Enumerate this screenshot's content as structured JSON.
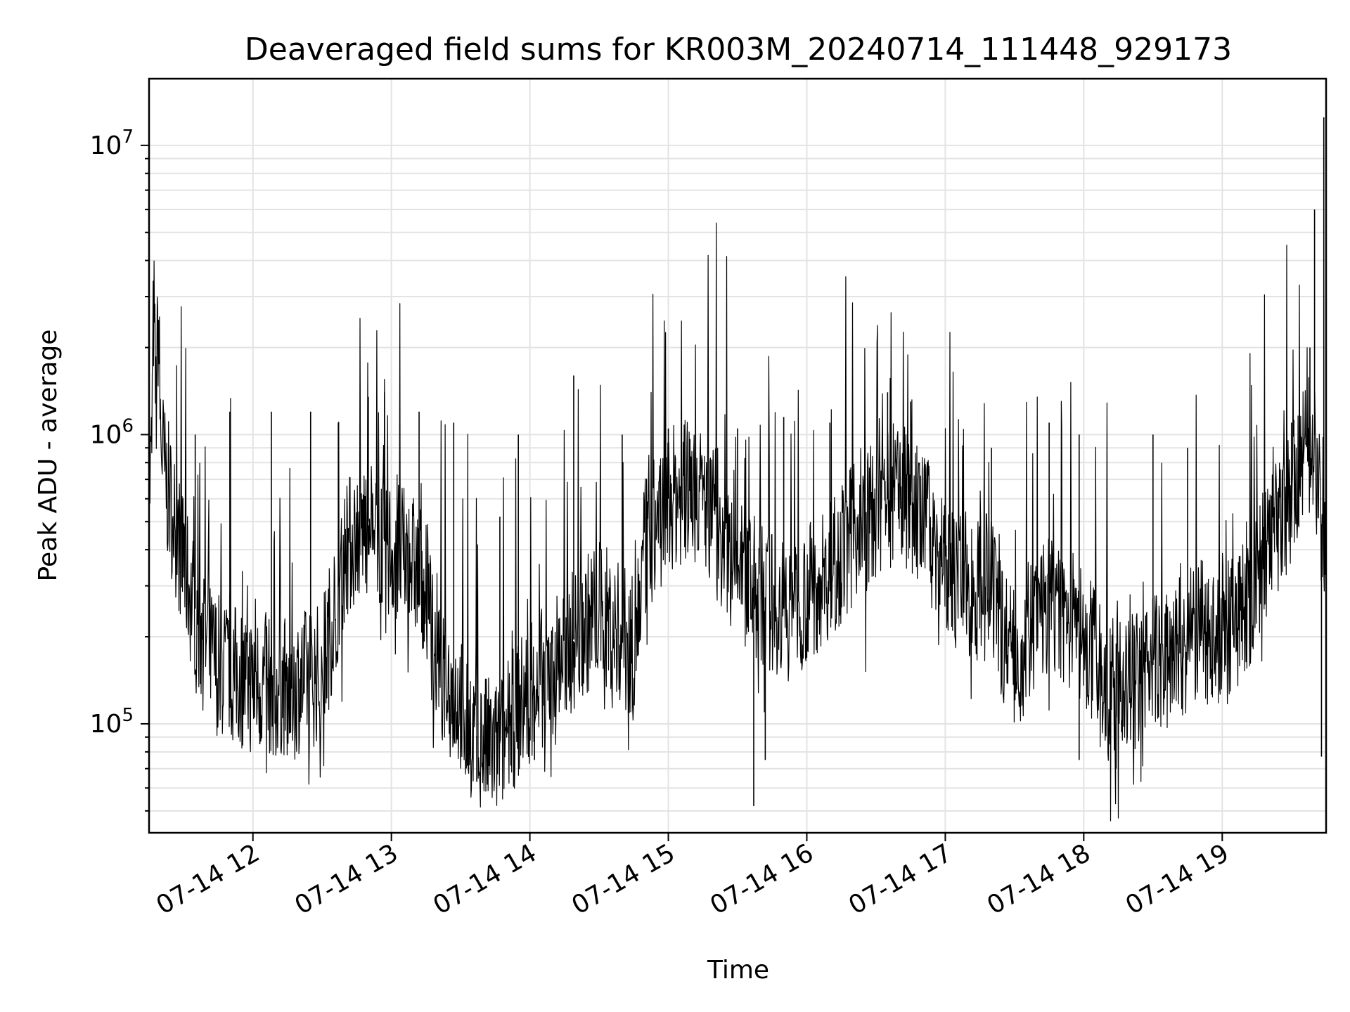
{
  "chart_data": {
    "type": "line",
    "title": "Deaveraged field sums for KR003M_20240714_111448_929173",
    "xlabel": "Time",
    "ylabel": "Peak ADU - average",
    "yscale": "log",
    "ylim": [
      42000,
      17000000
    ],
    "xlim": [
      "2024-07-14T11:15:00",
      "2024-07-14T19:45:00"
    ],
    "x_ticks": [
      {
        "t": "2024-07-14T12:00:00",
        "label": "07-14 12"
      },
      {
        "t": "2024-07-14T13:00:00",
        "label": "07-14 13"
      },
      {
        "t": "2024-07-14T14:00:00",
        "label": "07-14 14"
      },
      {
        "t": "2024-07-14T15:00:00",
        "label": "07-14 15"
      },
      {
        "t": "2024-07-14T16:00:00",
        "label": "07-14 16"
      },
      {
        "t": "2024-07-14T17:00:00",
        "label": "07-14 17"
      },
      {
        "t": "2024-07-14T18:00:00",
        "label": "07-14 18"
      },
      {
        "t": "2024-07-14T19:00:00",
        "label": "07-14 19"
      }
    ],
    "y_ticks": [
      {
        "value": 100000,
        "base": "10",
        "exp": "5"
      },
      {
        "value": 1000000,
        "base": "10",
        "exp": "6"
      },
      {
        "value": 10000000,
        "base": "10",
        "exp": "7"
      }
    ],
    "grid": true,
    "line_color": "#000000",
    "series": [
      {
        "x": [
          "2024-07-14T11:15:00",
          "2024-07-14T11:16:00",
          "2024-07-14T11:17:00",
          "2024-07-14T11:18:00",
          "2024-07-14T11:19:00",
          "2024-07-14T11:20:00",
          "2024-07-14T11:22:00",
          "2024-07-14T11:24:00",
          "2024-07-14T11:26:00",
          "2024-07-14T11:28:00",
          "2024-07-14T11:30:00",
          "2024-07-14T11:32:00",
          "2024-07-14T11:35:00",
          "2024-07-14T11:38:00",
          "2024-07-14T11:42:00",
          "2024-07-14T11:45:00",
          "2024-07-14T11:50:00",
          "2024-07-14T12:00:00",
          "2024-07-14T12:10:00",
          "2024-07-14T12:20:00",
          "2024-07-14T12:30:00",
          "2024-07-14T12:40:00",
          "2024-07-14T12:50:00",
          "2024-07-14T13:00:00",
          "2024-07-14T13:10:00",
          "2024-07-14T13:15:00",
          "2024-07-14T13:20:00",
          "2024-07-14T13:30:00",
          "2024-07-14T13:35:00",
          "2024-07-14T13:40:00",
          "2024-07-14T13:45:00",
          "2024-07-14T13:50:00",
          "2024-07-14T14:00:00",
          "2024-07-14T14:10:00",
          "2024-07-14T14:20:00",
          "2024-07-14T14:30:00",
          "2024-07-14T14:40:00",
          "2024-07-14T14:45:00",
          "2024-07-14T14:50:00",
          "2024-07-14T15:00:00",
          "2024-07-14T15:10:00",
          "2024-07-14T15:20:00",
          "2024-07-14T15:30:00",
          "2024-07-14T15:40:00",
          "2024-07-14T15:50:00",
          "2024-07-14T16:00:00",
          "2024-07-14T16:10:00",
          "2024-07-14T16:20:00",
          "2024-07-14T16:30:00",
          "2024-07-14T16:40:00",
          "2024-07-14T16:50:00",
          "2024-07-14T17:00:00",
          "2024-07-14T17:10:00",
          "2024-07-14T17:20:00",
          "2024-07-14T17:30:00",
          "2024-07-14T17:40:00",
          "2024-07-14T17:50:00",
          "2024-07-14T18:00:00",
          "2024-07-14T18:10:00",
          "2024-07-14T18:20:00",
          "2024-07-14T18:30:00",
          "2024-07-14T18:40:00",
          "2024-07-14T18:50:00",
          "2024-07-14T19:00:00",
          "2024-07-14T19:10:00",
          "2024-07-14T19:20:00",
          "2024-07-14T19:30:00",
          "2024-07-14T19:35:00",
          "2024-07-14T19:40:00",
          "2024-07-14T19:42:00",
          "2024-07-14T19:44:00",
          "2024-07-14T19:45:00"
        ],
        "y": [
          650000,
          800000,
          2800000,
          1200000,
          2600000,
          1000000,
          700000,
          600000,
          500000,
          420000,
          380000,
          300000,
          250000,
          200000,
          170000,
          160000,
          150000,
          140000,
          135000,
          140000,
          150000,
          400000,
          500000,
          400000,
          350000,
          300000,
          150000,
          120000,
          95000,
          85000,
          80000,
          95000,
          130000,
          160000,
          200000,
          250000,
          200000,
          180000,
          400000,
          600000,
          650000,
          550000,
          350000,
          280000,
          250000,
          280000,
          350000,
          450000,
          550000,
          650000,
          500000,
          350000,
          300000,
          280000,
          160000,
          250000,
          250000,
          200000,
          130000,
          135000,
          160000,
          180000,
          210000,
          200000,
          250000,
          400000,
          600000,
          800000,
          1000000,
          600000,
          400000,
          400000
        ],
        "spikes": [
          [
            "2024-07-14T11:35:00",
            1000000
          ],
          [
            "2024-07-14T11:50:00",
            1200000
          ],
          [
            "2024-07-14T12:08:00",
            1200000
          ],
          [
            "2024-07-14T12:25:00",
            1200000
          ],
          [
            "2024-07-14T12:37:00",
            1100000
          ],
          [
            "2024-07-14T12:50:00",
            1350000
          ],
          [
            "2024-07-14T12:57:00",
            1400000
          ],
          [
            "2024-07-14T13:12:00",
            1200000
          ],
          [
            "2024-07-14T13:27:00",
            1100000
          ],
          [
            "2024-07-14T13:47:00",
            520000
          ],
          [
            "2024-07-14T13:55:00",
            1000000
          ],
          [
            "2024-07-14T14:19:00",
            1600000
          ],
          [
            "2024-07-14T14:40:00",
            1000000
          ],
          [
            "2024-07-14T15:00:00",
            1050000
          ],
          [
            "2024-07-14T15:30:00",
            1050000
          ],
          [
            "2024-07-14T15:50:00",
            1150000
          ],
          [
            "2024-07-14T16:10:00",
            1100000
          ],
          [
            "2024-07-14T16:35:00",
            1400000
          ],
          [
            "2024-07-14T16:45:00",
            1300000
          ],
          [
            "2024-07-14T17:20:00",
            900000
          ],
          [
            "2024-07-14T17:45:00",
            1100000
          ],
          [
            "2024-07-14T17:58:00",
            1000000
          ],
          [
            "2024-07-14T18:30:00",
            1000000
          ],
          [
            "2024-07-14T18:45:00",
            900000
          ],
          [
            "2024-07-14T19:30:00",
            1100000
          ],
          [
            "2024-07-14T19:38:00",
            2000000
          ],
          [
            "2024-07-14T19:40:00",
            6000000
          ],
          [
            "2024-07-14T19:44:00",
            12500000
          ]
        ],
        "dips": [
          [
            "2024-07-14T12:03:00",
            85000
          ],
          [
            "2024-07-14T13:37:00",
            63000
          ],
          [
            "2024-07-14T14:02:00",
            75000
          ],
          [
            "2024-07-14T15:37:00",
            52000
          ],
          [
            "2024-07-14T15:42:00",
            75000
          ],
          [
            "2024-07-14T17:58:00",
            75000
          ],
          [
            "2024-07-14T18:14:00",
            70000
          ],
          [
            "2024-07-14T19:43:00",
            77000
          ]
        ]
      }
    ]
  }
}
